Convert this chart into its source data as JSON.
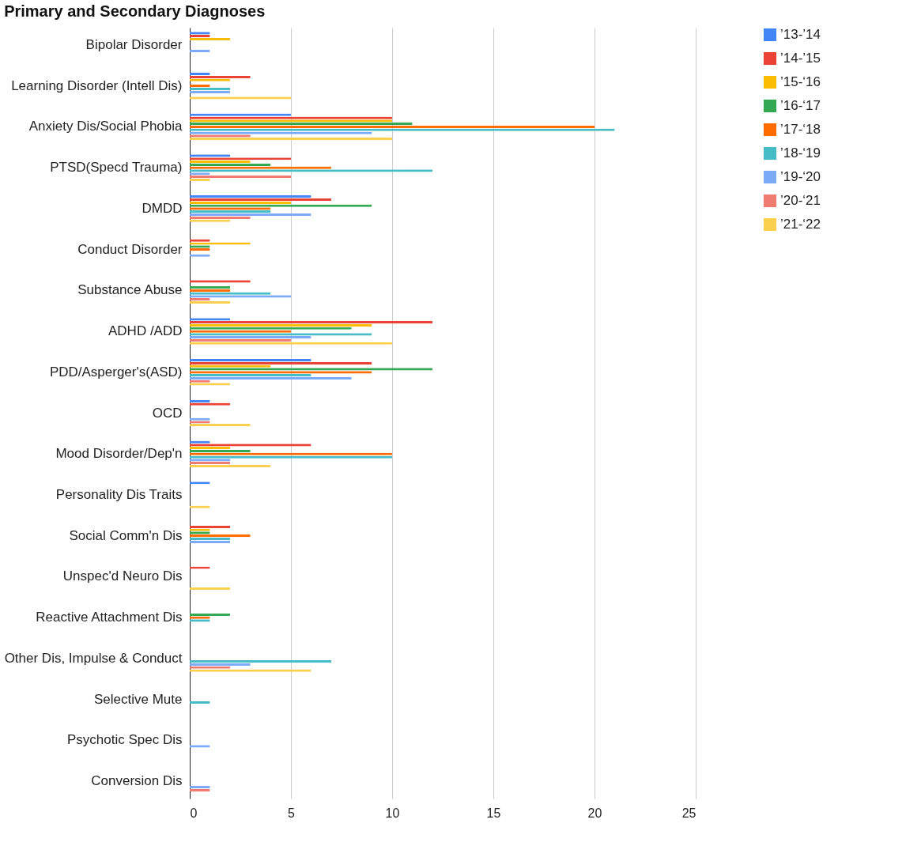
{
  "chart_data": {
    "type": "bar",
    "orientation": "horizontal",
    "title": "Primary and Secondary Diagnoses",
    "categories": [
      "Bipolar Disorder",
      "Learning Disorder (Intell Dis)",
      "Anxiety Dis/Social Phobia",
      "PTSD(Specd Trauma)",
      "DMDD",
      "Conduct Disorder",
      "Substance Abuse",
      "ADHD /ADD",
      "PDD/Asperger's(ASD)",
      "OCD",
      "Mood Disorder/Dep'n",
      "Personality Dis Traits",
      "Social Comm'n Dis",
      "Unspec'd Neuro Dis",
      "Reactive Attachment Dis",
      "Other Dis, Impulse & Conduct",
      "Selective Mute",
      "Psychotic Spec Dis",
      "Conversion Dis"
    ],
    "series": [
      {
        "name": "’13-’14",
        "color": "#4285f4",
        "values": [
          1,
          1,
          5,
          2,
          6,
          null,
          null,
          2,
          6,
          1,
          1,
          1,
          null,
          null,
          null,
          null,
          null,
          null,
          null
        ]
      },
      {
        "name": "’14-’15",
        "color": "#ea4335",
        "values": [
          1,
          3,
          10,
          5,
          7,
          1,
          3,
          12,
          9,
          2,
          6,
          null,
          2,
          1,
          null,
          null,
          null,
          null,
          null
        ]
      },
      {
        "name": "’15-‘16",
        "color": "#fbbc04",
        "values": [
          2,
          2,
          10,
          3,
          5,
          3,
          null,
          9,
          4,
          null,
          2,
          null,
          1,
          null,
          null,
          null,
          null,
          null,
          null
        ]
      },
      {
        "name": "’16-‘17",
        "color": "#34a853",
        "values": [
          null,
          null,
          11,
          4,
          9,
          1,
          2,
          8,
          12,
          null,
          3,
          null,
          1,
          null,
          2,
          null,
          null,
          null,
          null
        ]
      },
      {
        "name": "’17-‘18",
        "color": "#ff6d01",
        "values": [
          null,
          1,
          20,
          7,
          4,
          1,
          2,
          5,
          9,
          null,
          10,
          null,
          3,
          null,
          1,
          null,
          null,
          null,
          null
        ]
      },
      {
        "name": "’18-‘19",
        "color": "#46bdc6",
        "values": [
          null,
          2,
          21,
          12,
          4,
          null,
          4,
          9,
          6,
          null,
          10,
          null,
          2,
          null,
          1,
          7,
          1,
          null,
          null
        ]
      },
      {
        "name": "’19-‘20",
        "color": "#7baaf7",
        "values": [
          1,
          2,
          9,
          1,
          6,
          1,
          5,
          6,
          8,
          1,
          2,
          null,
          2,
          null,
          null,
          3,
          null,
          1,
          1
        ]
      },
      {
        "name": "’20-‘21",
        "color": "#f07b72",
        "values": [
          null,
          null,
          3,
          5,
          3,
          null,
          1,
          5,
          1,
          1,
          2,
          null,
          null,
          null,
          null,
          2,
          null,
          null,
          1
        ]
      },
      {
        "name": "’21-‘22",
        "color": "#fcd04f",
        "values": [
          null,
          5,
          10,
          1,
          2,
          null,
          2,
          10,
          2,
          3,
          4,
          1,
          null,
          2,
          null,
          6,
          null,
          null,
          null
        ]
      }
    ],
    "xlim": [
      0,
      25
    ],
    "xticks": [
      0,
      5,
      10,
      15,
      20,
      25
    ],
    "grid": "x",
    "legend": "right"
  }
}
